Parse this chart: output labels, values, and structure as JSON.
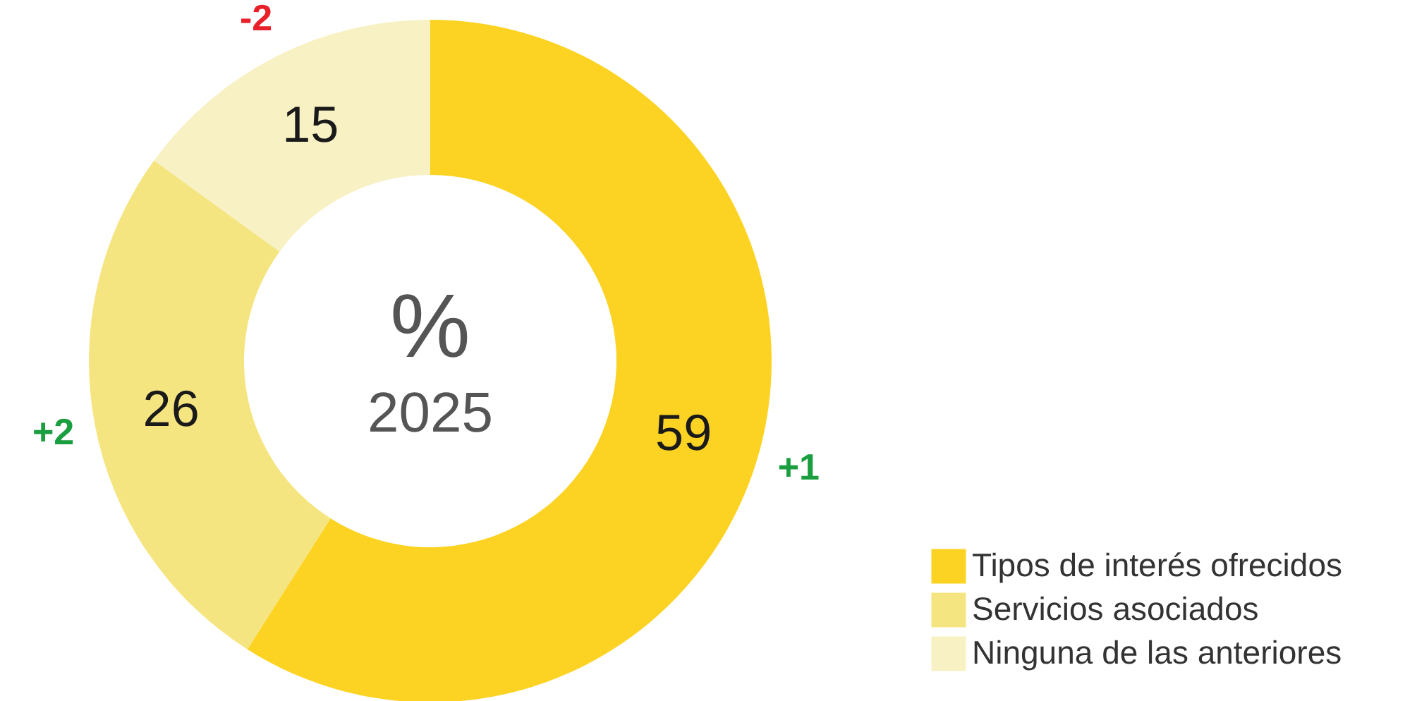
{
  "chart_data": {
    "type": "donut",
    "categories": [
      "Tipos de interés ofrecidos",
      "Servicios asociados",
      "Ninguna de las anteriores"
    ],
    "values": [
      59,
      26,
      15
    ],
    "colors": [
      "#fcd323",
      "#f5e580",
      "#f8f1c4"
    ],
    "data_labels": true,
    "legend": "bottom right",
    "annotations": [
      "%",
      "2025",
      "+1",
      "+2",
      "-2"
    ]
  }
}
